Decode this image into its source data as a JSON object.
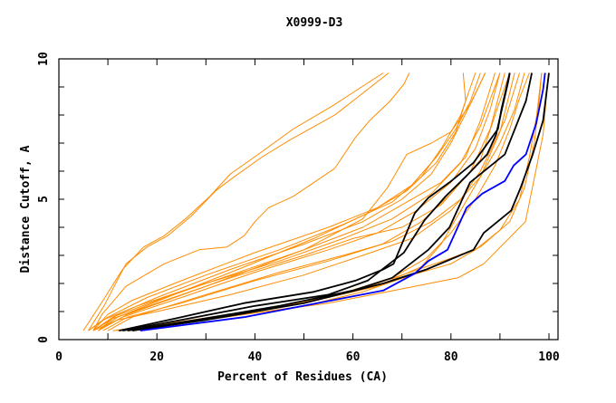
{
  "chart_data": {
    "type": "line",
    "title": "X0999-D3",
    "xlabel": "Percent of Residues (CA)",
    "ylabel": "Distance Cutoff, A",
    "xlim": [
      0,
      102
    ],
    "ylim": [
      0,
      10
    ],
    "xticks": [
      0,
      20,
      40,
      60,
      80,
      100
    ],
    "yticks": [
      0,
      5,
      10
    ],
    "grid": false,
    "colors": {
      "orange": "#ff8c00",
      "black": "#000000",
      "blue": "#0000ff"
    },
    "series": [
      {
        "name": "o1",
        "color": "orange",
        "points": [
          [
            5,
            0.32
          ],
          [
            8.8,
            1.34
          ],
          [
            13,
            2.5
          ],
          [
            17.3,
            3.3
          ],
          [
            21.5,
            3.7
          ],
          [
            25.8,
            4.3
          ],
          [
            30.8,
            5.1
          ],
          [
            35,
            5.9
          ],
          [
            40.7,
            6.6
          ],
          [
            47.8,
            7.5
          ],
          [
            55.6,
            8.3
          ],
          [
            66.2,
            9.5
          ]
        ]
      },
      {
        "name": "o2",
        "color": "orange",
        "points": [
          [
            6,
            0.32
          ],
          [
            9.2,
            1.2
          ],
          [
            13.7,
            2.7
          ],
          [
            18,
            3.3
          ],
          [
            22.2,
            3.7
          ],
          [
            27,
            4.4
          ],
          [
            32,
            5.3
          ],
          [
            35,
            5.7
          ],
          [
            41.4,
            6.5
          ],
          [
            47,
            7.1
          ],
          [
            56.3,
            8
          ],
          [
            67.3,
            9.5
          ]
        ]
      },
      {
        "name": "o3",
        "color": "orange",
        "points": [
          [
            7,
            0.32
          ],
          [
            8.8,
            0.9
          ],
          [
            13.7,
            1.9
          ],
          [
            21.5,
            2.7
          ],
          [
            28.6,
            3.2
          ],
          [
            34.3,
            3.3
          ],
          [
            37.8,
            3.7
          ],
          [
            40,
            4.2
          ],
          [
            42.8,
            4.7
          ],
          [
            47.8,
            5.1
          ],
          [
            56.3,
            6.1
          ],
          [
            60.5,
            7.2
          ],
          [
            63.4,
            7.8
          ],
          [
            67.6,
            8.5
          ],
          [
            70.4,
            9.1
          ],
          [
            71.5,
            9.5
          ]
        ]
      },
      {
        "name": "m1",
        "color": "orange",
        "points": [
          [
            7,
            0.32
          ],
          [
            10,
            0.9
          ],
          [
            15,
            1.4
          ],
          [
            25,
            2.1
          ],
          [
            40,
            3.1
          ],
          [
            55,
            4.0
          ],
          [
            65,
            4.7
          ],
          [
            72,
            5.5
          ],
          [
            77,
            6.5
          ],
          [
            81,
            7.5
          ],
          [
            84,
            8.5
          ],
          [
            86,
            9.5
          ]
        ]
      },
      {
        "name": "m2",
        "color": "orange",
        "points": [
          [
            6,
            0.32
          ],
          [
            10,
            0.8
          ],
          [
            18,
            1.5
          ],
          [
            30,
            2.3
          ],
          [
            45,
            3.2
          ],
          [
            58,
            4.1
          ],
          [
            68,
            4.9
          ],
          [
            74,
            5.8
          ],
          [
            78,
            6.8
          ],
          [
            82,
            8.0
          ],
          [
            85,
            9.5
          ]
        ]
      },
      {
        "name": "m3",
        "color": "orange",
        "points": [
          [
            8,
            0.32
          ],
          [
            12,
            0.9
          ],
          [
            20,
            1.5
          ],
          [
            35,
            2.5
          ],
          [
            50,
            3.4
          ],
          [
            62,
            4.2
          ],
          [
            70,
            5.0
          ],
          [
            76,
            5.9
          ],
          [
            80,
            7.0
          ],
          [
            84,
            8.4
          ],
          [
            87,
            9.5
          ]
        ]
      },
      {
        "name": "m4",
        "color": "orange",
        "points": [
          [
            7,
            0.32
          ],
          [
            11,
            0.8
          ],
          [
            20,
            1.4
          ],
          [
            35,
            2.3
          ],
          [
            50,
            3.2
          ],
          [
            62,
            4.0
          ],
          [
            70,
            4.8
          ],
          [
            78,
            5.6
          ],
          [
            83,
            6.5
          ],
          [
            86,
            7.8
          ],
          [
            89,
            9.5
          ]
        ]
      },
      {
        "name": "m5",
        "color": "orange",
        "points": [
          [
            6,
            0.32
          ],
          [
            9,
            0.7
          ],
          [
            16,
            1.2
          ],
          [
            28,
            1.9
          ],
          [
            45,
            2.8
          ],
          [
            58,
            3.6
          ],
          [
            68,
            4.3
          ],
          [
            76,
            5.2
          ],
          [
            82,
            6.3
          ],
          [
            86,
            7.6
          ],
          [
            90,
            9.5
          ]
        ]
      },
      {
        "name": "m6",
        "color": "orange",
        "points": [
          [
            8,
            0.32
          ],
          [
            12,
            0.8
          ],
          [
            22,
            1.5
          ],
          [
            38,
            2.6
          ],
          [
            52,
            3.6
          ],
          [
            63,
            4.5
          ],
          [
            71,
            5.3
          ],
          [
            77,
            6.3
          ],
          [
            81,
            7.4
          ],
          [
            83,
            8.5
          ],
          [
            82.5,
            9.5
          ]
        ]
      },
      {
        "name": "m7",
        "color": "orange",
        "points": [
          [
            7,
            0.32
          ],
          [
            11,
            0.75
          ],
          [
            20,
            1.3
          ],
          [
            35,
            2.2
          ],
          [
            50,
            3.0
          ],
          [
            60,
            3.6
          ],
          [
            70,
            4.0
          ],
          [
            78,
            4.8
          ],
          [
            84,
            6.0
          ],
          [
            88,
            7.5
          ],
          [
            91,
            9.5
          ]
        ]
      },
      {
        "name": "m8",
        "color": "orange",
        "points": [
          [
            8,
            0.32
          ],
          [
            13,
            0.8
          ],
          [
            25,
            1.5
          ],
          [
            40,
            2.4
          ],
          [
            55,
            3.2
          ],
          [
            65,
            3.8
          ],
          [
            73,
            4.6
          ],
          [
            80,
            5.6
          ],
          [
            85,
            6.8
          ],
          [
            88,
            8.2
          ],
          [
            90,
            9.5
          ]
        ]
      },
      {
        "name": "m9",
        "color": "orange",
        "points": [
          [
            9,
            0.32
          ],
          [
            14,
            0.8
          ],
          [
            25,
            1.3
          ],
          [
            40,
            2.1
          ],
          [
            55,
            2.8
          ],
          [
            66,
            3.4
          ],
          [
            74,
            4.2
          ],
          [
            80,
            5.2
          ],
          [
            86,
            6.4
          ],
          [
            89,
            8.0
          ],
          [
            92,
            9.5
          ]
        ]
      },
      {
        "name": "m10",
        "color": "orange",
        "points": [
          [
            7,
            0.32
          ],
          [
            12,
            0.7
          ],
          [
            20,
            1.0
          ],
          [
            35,
            1.6
          ],
          [
            50,
            2.3
          ],
          [
            62,
            3.0
          ],
          [
            72,
            3.6
          ],
          [
            80,
            4.6
          ],
          [
            86,
            5.8
          ],
          [
            90,
            7.4
          ],
          [
            93,
            9.5
          ]
        ]
      },
      {
        "name": "m11",
        "color": "orange",
        "points": [
          [
            8,
            0.32
          ],
          [
            14,
            0.9
          ],
          [
            30,
            1.9
          ],
          [
            50,
            3.2
          ],
          [
            62,
            4.3
          ],
          [
            67,
            5.4
          ],
          [
            71,
            6.6
          ],
          [
            76,
            7.0
          ],
          [
            80,
            7.4
          ],
          [
            84,
            8.4
          ],
          [
            87,
            9.5
          ]
        ]
      },
      {
        "name": "m12",
        "color": "orange",
        "points": [
          [
            10,
            0.32
          ],
          [
            15,
            0.8
          ],
          [
            30,
            1.6
          ],
          [
            45,
            2.4
          ],
          [
            58,
            3.0
          ],
          [
            68,
            3.5
          ],
          [
            76,
            4.2
          ],
          [
            82,
            5.0
          ],
          [
            86,
            6.0
          ],
          [
            91,
            7.8
          ],
          [
            94,
            9.5
          ]
        ]
      },
      {
        "name": "l1",
        "color": "orange",
        "points": [
          [
            11,
            0.32
          ],
          [
            25,
            0.6
          ],
          [
            40,
            0.95
          ],
          [
            55,
            1.3
          ],
          [
            66,
            1.67
          ],
          [
            81.4,
            2.2
          ],
          [
            86.7,
            2.7
          ],
          [
            95.2,
            4.2
          ],
          [
            97.3,
            6
          ],
          [
            98.8,
            7.3
          ],
          [
            99.9,
            9.5
          ]
        ]
      },
      {
        "name": "l2",
        "color": "orange",
        "points": [
          [
            12,
            0.32
          ],
          [
            30,
            0.7
          ],
          [
            50,
            1.2
          ],
          [
            62,
            1.7
          ],
          [
            72,
            2.3
          ],
          [
            80,
            2.7
          ],
          [
            85,
            3.2
          ],
          [
            90,
            3.9
          ],
          [
            94,
            5.0
          ],
          [
            96,
            6.5
          ],
          [
            97.5,
            8
          ],
          [
            98.5,
            9.5
          ]
        ]
      },
      {
        "name": "l3",
        "color": "orange",
        "points": [
          [
            13,
            0.32
          ],
          [
            30,
            0.75
          ],
          [
            50,
            1.3
          ],
          [
            65,
            1.9
          ],
          [
            74,
            2.6
          ],
          [
            78,
            3.4
          ],
          [
            82,
            4.6
          ],
          [
            86,
            5.8
          ],
          [
            90,
            7.0
          ],
          [
            93,
            8.2
          ],
          [
            95,
            9.5
          ]
        ]
      },
      {
        "name": "l4",
        "color": "orange",
        "points": [
          [
            12,
            0.32
          ],
          [
            35,
            0.9
          ],
          [
            55,
            1.5
          ],
          [
            68,
            2.2
          ],
          [
            75,
            2.9
          ],
          [
            80,
            3.8
          ],
          [
            85,
            5.0
          ],
          [
            89,
            6.2
          ],
          [
            92,
            7.5
          ],
          [
            94,
            8.6
          ],
          [
            96,
            9.5
          ]
        ]
      },
      {
        "name": "l5",
        "color": "orange",
        "points": [
          [
            14,
            0.32
          ],
          [
            40,
            1.0
          ],
          [
            60,
            1.7
          ],
          [
            70,
            2.3
          ],
          [
            80,
            2.9
          ],
          [
            86,
            3.3
          ],
          [
            92,
            4.2
          ],
          [
            95,
            5.4
          ],
          [
            97,
            7.0
          ],
          [
            98,
            8.5
          ],
          [
            98.5,
            9.5
          ]
        ]
      },
      {
        "name": "k1",
        "color": "black",
        "points": [
          [
            12.3,
            0.32
          ],
          [
            23.7,
            0.75
          ],
          [
            37.8,
            1.3
          ],
          [
            52,
            1.7
          ],
          [
            60.5,
            2.1
          ],
          [
            66.2,
            2.5
          ],
          [
            68.3,
            2.7
          ],
          [
            72.6,
            4.5
          ],
          [
            75.4,
            5.05
          ],
          [
            79.7,
            5.6
          ],
          [
            84.6,
            6.3
          ],
          [
            89.6,
            7.5
          ],
          [
            90.3,
            8.2
          ],
          [
            92,
            9.5
          ]
        ]
      },
      {
        "name": "k2",
        "color": "black",
        "points": [
          [
            13,
            0.32
          ],
          [
            25,
            0.7
          ],
          [
            40,
            1.2
          ],
          [
            55,
            1.6
          ],
          [
            63,
            2.1
          ],
          [
            70.4,
            3.1
          ],
          [
            74.6,
            4.25
          ],
          [
            78.9,
            5.1
          ],
          [
            83,
            5.8
          ],
          [
            87.4,
            6.6
          ],
          [
            89.2,
            7.3
          ],
          [
            91.7,
            9.2
          ],
          [
            92,
            9.5
          ]
        ]
      },
      {
        "name": "k3",
        "color": "black",
        "points": [
          [
            14,
            0.32
          ],
          [
            28,
            0.7
          ],
          [
            45,
            1.2
          ],
          [
            60,
            1.75
          ],
          [
            68,
            2.2
          ],
          [
            75.4,
            3.2
          ],
          [
            79.7,
            4.0
          ],
          [
            83.9,
            5.6
          ],
          [
            91,
            6.6
          ],
          [
            95.3,
            8.5
          ],
          [
            96.5,
            9.5
          ]
        ]
      },
      {
        "name": "k4",
        "color": "black",
        "points": [
          [
            15,
            0.32
          ],
          [
            30,
            0.7
          ],
          [
            50,
            1.3
          ],
          [
            66.2,
            2.0
          ],
          [
            75,
            2.5
          ],
          [
            84.6,
            3.2
          ],
          [
            86.7,
            3.8
          ],
          [
            92.3,
            4.6
          ],
          [
            94.2,
            5.4
          ],
          [
            96.7,
            6.6
          ],
          [
            98.8,
            7.8
          ],
          [
            100,
            9.5
          ]
        ]
      },
      {
        "name": "b1",
        "color": "blue",
        "points": [
          [
            16.6,
            0.32
          ],
          [
            37.8,
            0.8
          ],
          [
            66.2,
            1.75
          ],
          [
            72.6,
            2.35
          ],
          [
            75.4,
            2.8
          ],
          [
            79.3,
            3.2
          ],
          [
            83.2,
            4.7
          ],
          [
            86.4,
            5.2
          ],
          [
            91,
            5.65
          ],
          [
            92.8,
            6.2
          ],
          [
            95.3,
            6.6
          ],
          [
            97.4,
            7.7
          ],
          [
            98.8,
            8.9
          ],
          [
            99.2,
            9.5
          ]
        ]
      }
    ]
  }
}
